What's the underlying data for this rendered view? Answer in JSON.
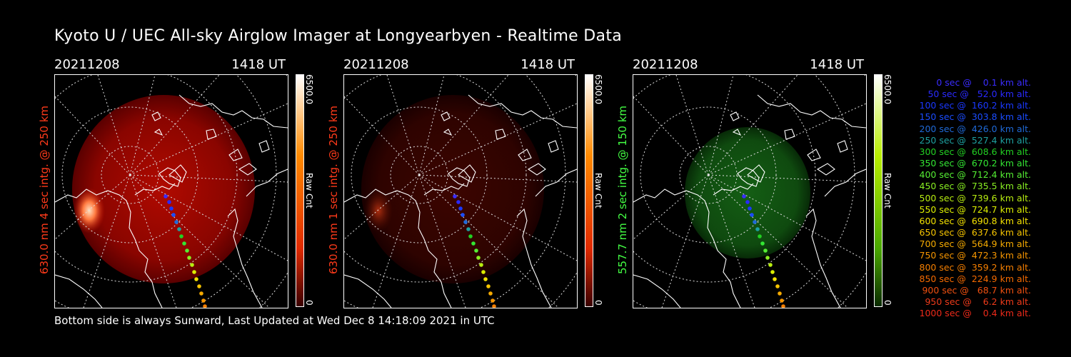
{
  "title": "Kyoto U / UEC All-sky Airglow Imager at Longyearbyen - Realtime Data",
  "footer": "Bottom side is always Sunward, Last Updated at Wed Dec  8 14:18:09 2021 in UTC",
  "panels": [
    {
      "date": "20211208",
      "time": "1418 UT",
      "ylabel": "630.0 nm 4 sec intg. @ 250 km",
      "color": "#ff3a1a",
      "cb_max": "6500.0",
      "cb_min": "0",
      "cb_unit": "Raw Cnt",
      "cb_top": "#ffffff",
      "cb_mid": "#ff6a00",
      "cb_low": "#c01000"
    },
    {
      "date": "20211208",
      "time": "1418 UT",
      "ylabel": "630.0 nm 1 sec intg. @ 250 km",
      "color": "#ff3a1a",
      "cb_max": "6500.0",
      "cb_min": "0",
      "cb_unit": "Raw Cnt",
      "cb_top": "#ffffff",
      "cb_mid": "#ff6a00",
      "cb_low": "#c01000"
    },
    {
      "date": "20211208",
      "time": "1418 UT",
      "ylabel": "557.7 nm 2 sec intg. @ 150 km",
      "color": "#44ff44",
      "cb_max": "6500.0",
      "cb_min": "0",
      "cb_unit": "Raw Cnt",
      "cb_top": "#ffffff",
      "cb_mid": "#99ee00",
      "cb_low": "#2f8a00"
    }
  ],
  "legend": [
    {
      "text": "  0 sec @    0.1 km alt.",
      "color": "#3a2cff"
    },
    {
      "text": " 50 sec @   52.0 km alt.",
      "color": "#2a2aff"
    },
    {
      "text": "100 sec @  160.2 km alt.",
      "color": "#1a38ff"
    },
    {
      "text": "150 sec @  303.8 km alt.",
      "color": "#1a4cff"
    },
    {
      "text": "200 sec @  426.0 km alt.",
      "color": "#1f6ad8"
    },
    {
      "text": "250 sec @  527.4 km alt.",
      "color": "#1ea0a0"
    },
    {
      "text": "300 sec @  608.6 km alt.",
      "color": "#22d022"
    },
    {
      "text": "350 sec @  670.2 km alt.",
      "color": "#33e633"
    },
    {
      "text": "400 sec @  712.4 km alt.",
      "color": "#55ee33"
    },
    {
      "text": "450 sec @  735.5 km alt.",
      "color": "#88ee22"
    },
    {
      "text": "500 sec @  739.6 km alt.",
      "color": "#b8ee11"
    },
    {
      "text": "550 sec @  724.7 km alt.",
      "color": "#dcee00"
    },
    {
      "text": "600 sec @  690.8 km alt.",
      "color": "#f2e000"
    },
    {
      "text": "650 sec @  637.6 km alt.",
      "color": "#f5c400"
    },
    {
      "text": "700 sec @  564.9 km alt.",
      "color": "#f5aa00"
    },
    {
      "text": "750 sec @  472.3 km alt.",
      "color": "#f59500"
    },
    {
      "text": "800 sec @  359.2 km alt.",
      "color": "#f57f00"
    },
    {
      "text": "850 sec @  224.9 km alt.",
      "color": "#f56a00"
    },
    {
      "text": "900 sec @   68.7 km alt.",
      "color": "#f05010"
    },
    {
      "text": "950 sec @    6.2 km alt.",
      "color": "#ee3a1a"
    },
    {
      "text": "1000 sec @    0.4 km alt.",
      "color": "#ee2a1a"
    }
  ],
  "images": {
    "panel1": {
      "glow": "#a00000",
      "edge": "#550000",
      "intensity": "bright",
      "aurora": "strong"
    },
    "panel2": {
      "glow": "#3c0000",
      "edge": "#200000",
      "intensity": "dim",
      "aurora": "faint"
    },
    "panel3": {
      "glow": "#0f5a0f",
      "edge": "#062806",
      "intensity": "medium",
      "aurora": "none"
    }
  }
}
